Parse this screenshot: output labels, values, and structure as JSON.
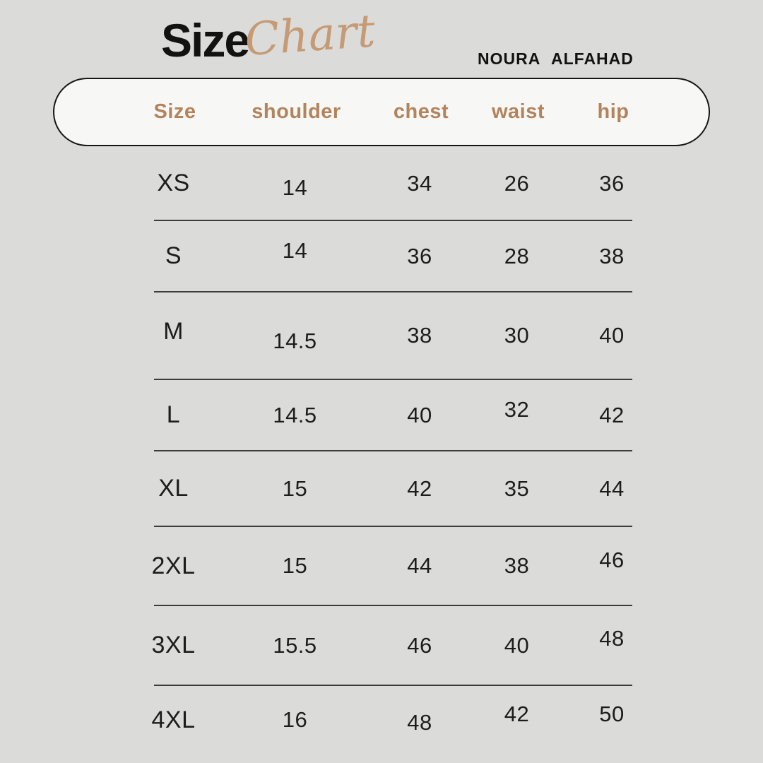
{
  "header": {
    "title_bold": "Size",
    "title_script": "Chart",
    "brand": "NOURA ALFAHAD"
  },
  "chart_data": {
    "type": "table",
    "title": "Size Chart",
    "columns": [
      "Size",
      "shoulder",
      "chest",
      "waist",
      "hip"
    ],
    "rows": [
      [
        "XS",
        "14",
        "34",
        "26",
        "36"
      ],
      [
        "S",
        "14",
        "36",
        "28",
        "38"
      ],
      [
        "M",
        "14.5",
        "38",
        "30",
        "40"
      ],
      [
        "L",
        "14.5",
        "40",
        "32",
        "42"
      ],
      [
        "XL",
        "15",
        "42",
        "35",
        "44"
      ],
      [
        "2XL",
        "15",
        "44",
        "38",
        "46"
      ],
      [
        "3XL",
        "15.5",
        "46",
        "40",
        "48"
      ],
      [
        "4XL",
        "16",
        "48",
        "42",
        "50"
      ]
    ]
  },
  "colors": {
    "background": "#dbdbd9",
    "pill_background": "#f7f7f5",
    "pill_border": "#161616",
    "accent_tan": "#b3835c",
    "script_tan": "#c59a74",
    "text": "#1c1c1c",
    "row_line": "#3c3c3c"
  }
}
